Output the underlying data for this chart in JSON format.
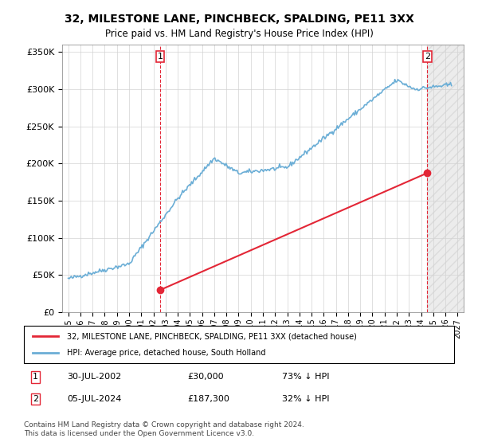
{
  "title": "32, MILESTONE LANE, PINCHBECK, SPALDING, PE11 3XX",
  "subtitle": "Price paid vs. HM Land Registry's House Price Index (HPI)",
  "sale1_date": "30-JUL-2002",
  "sale1_price": 30000,
  "sale1_label": "73% ↓ HPI",
  "sale1_x": 2002.57,
  "sale2_date": "05-JUL-2024",
  "sale2_price": 187300,
  "sale2_label": "32% ↓ HPI",
  "sale2_x": 2024.51,
  "legend_line1": "32, MILESTONE LANE, PINCHBECK, SPALDING, PE11 3XX (detached house)",
  "legend_line2": "HPI: Average price, detached house, South Holland",
  "note1": "1     30-JUL-2002          £30,000          73% ↓ HPI",
  "note2": "2     05-JUL-2024          £187,300        32% ↓ HPI",
  "footnote": "Contains HM Land Registry data © Crown copyright and database right 2024.\nThis data is licensed under the Open Government Licence v3.0.",
  "hpi_line_color": "#6baed6",
  "price_line_color": "#e32636",
  "vline_color": "#e32636",
  "sale1_dot_color": "#e32636",
  "sale2_dot_color": "#e32636",
  "xmin": 1994.5,
  "xmax": 2027.5,
  "ymin": 0,
  "ymax": 360000,
  "yticks": [
    0,
    50000,
    100000,
    150000,
    200000,
    250000,
    300000,
    350000
  ]
}
